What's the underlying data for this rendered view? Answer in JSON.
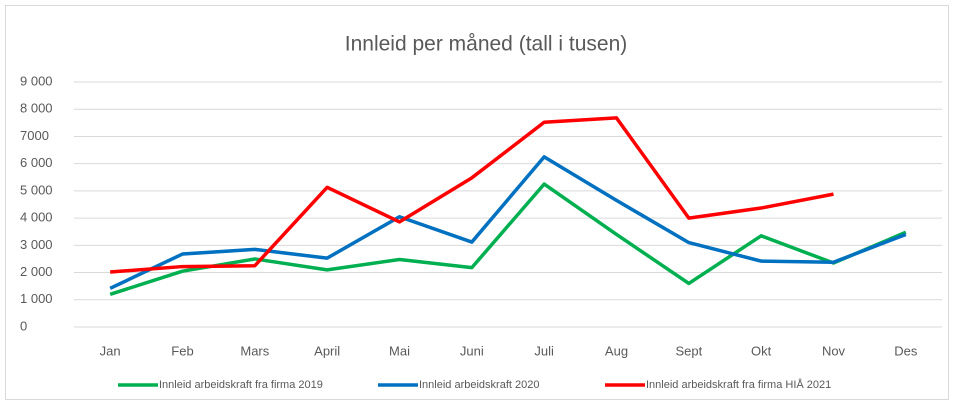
{
  "chart_data": {
    "type": "line",
    "title": "Innleid per måned (tall i tusen)",
    "categories": [
      "Jan",
      "Feb",
      "Mars",
      "April",
      "Mai",
      "Juni",
      "Juli",
      "Aug",
      "Sept",
      "Okt",
      "Nov",
      "Des"
    ],
    "series": [
      {
        "name": "Innleid arbeidskraft fra firma 2019",
        "color": "#00b050",
        "values": [
          1200,
          2050,
          2500,
          2100,
          2480,
          2180,
          5250,
          3400,
          1600,
          3350,
          2350,
          3480
        ]
      },
      {
        "name": "Innleid arbeidskraft  2020",
        "color": "#0070c0",
        "values": [
          1420,
          2680,
          2850,
          2530,
          4050,
          3120,
          6250,
          4650,
          3100,
          2420,
          2380,
          3400
        ]
      },
      {
        "name": "Innleid arbeidskraft fra firma HIÅ 2021",
        "color": "#ff0000",
        "values": [
          2020,
          2220,
          2250,
          5130,
          3860,
          5480,
          7520,
          7680,
          4000,
          4370,
          4880,
          null
        ]
      }
    ],
    "ylim": [
      0,
      9000
    ],
    "yticks": [
      0,
      {
        "value": 1000,
        "label": "1 000"
      },
      {
        "value": 2000,
        "label": "2 000"
      },
      {
        "value": 3000,
        "label": "3 000"
      },
      {
        "value": 4000,
        "label": "4 000"
      },
      {
        "value": 5000,
        "label": "5 000"
      },
      {
        "value": 6000,
        "label": "6 000"
      },
      7000,
      {
        "value": 8000,
        "label": "8 000"
      },
      {
        "value": 9000,
        "label": "9 000"
      }
    ],
    "grid": true,
    "legend": "bottom"
  }
}
